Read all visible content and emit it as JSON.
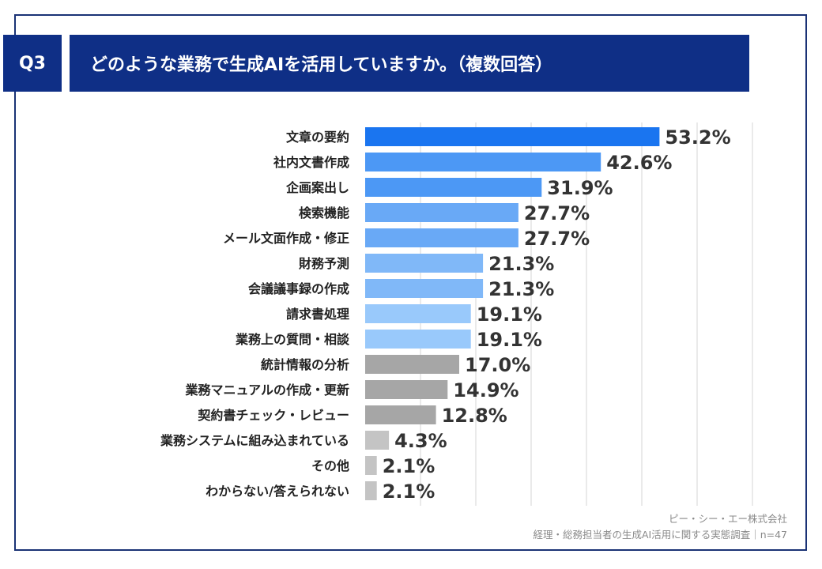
{
  "header": {
    "badge": "Q3",
    "title": "どのような業務で生成AIを活用していますか。（複数回答）"
  },
  "footer": {
    "company": "ピー・シー・エー株式会社",
    "survey": "経理・総務担当者の生成AI活用に関する実態調査｜n=47"
  },
  "chart_data": {
    "type": "bar",
    "orientation": "horizontal",
    "title": "どのような業務で生成AIを活用していますか。（複数回答）",
    "xlabel": "",
    "ylabel": "",
    "xlim": [
      0,
      70
    ],
    "grid": true,
    "categories": [
      "文章の要約",
      "社内文書作成",
      "企画案出し",
      "検索機能",
      "メール文面作成・修正",
      "財務予測",
      "会議議事録の作成",
      "請求書処理",
      "業務上の質問・相談",
      "統計情報の分析",
      "業務マニュアルの作成・更新",
      "契約書チェック・レビュー",
      "業務システムに組み込まれている",
      "その他",
      "わからない/答えられない"
    ],
    "values": [
      53.2,
      42.6,
      31.9,
      27.7,
      27.7,
      21.3,
      21.3,
      19.1,
      19.1,
      17.0,
      14.9,
      12.8,
      4.3,
      2.1,
      2.1
    ],
    "labels": [
      "53.2%",
      "42.6%",
      "31.9%",
      "27.7%",
      "27.7%",
      "21.3%",
      "21.3%",
      "19.1%",
      "19.1%",
      "17.0%",
      "14.9%",
      "12.8%",
      "4.3%",
      "2.1%",
      "2.1%"
    ],
    "bar_colors": [
      "#1a75f0",
      "#4c98f5",
      "#4c98f5",
      "#69a9f6",
      "#69a9f6",
      "#80b8f8",
      "#80b8f8",
      "#99c9fb",
      "#99c9fb",
      "#a6a6a6",
      "#a6a6a6",
      "#a6a6a6",
      "#c4c4c4",
      "#c4c4c4",
      "#c4c4c4"
    ],
    "colors": {
      "grid": "#d4d4d4",
      "category_text": "#222222",
      "value_text": "#333333"
    }
  }
}
